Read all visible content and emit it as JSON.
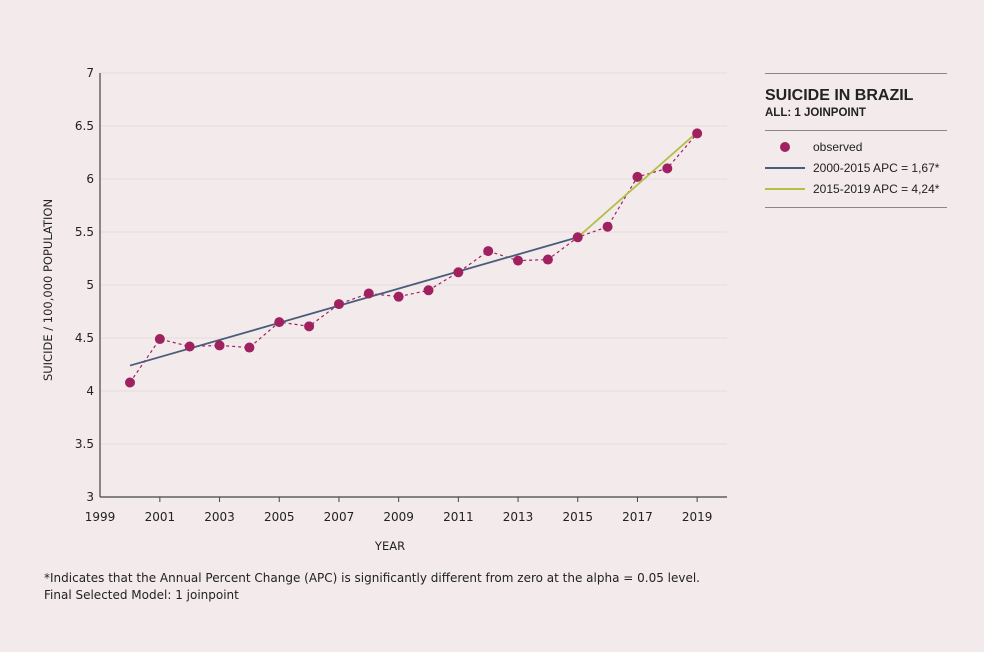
{
  "chart_data": {
    "type": "line",
    "xlabel": "YEAR",
    "ylabel": "SUICIDE / 100,000 POPULATION",
    "xlim": [
      1999,
      2020
    ],
    "ylim": [
      3,
      7
    ],
    "x_ticks": [
      "1999",
      "2001",
      "2003",
      "2005",
      "2007",
      "2009",
      "2011",
      "2013",
      "2015",
      "2017",
      "2019"
    ],
    "y_ticks": [
      "3",
      "3.5",
      "4",
      "4.5",
      "5",
      "5.5",
      "6",
      "6.5",
      "7"
    ],
    "grid": "horizontal",
    "x": [
      2000,
      2001,
      2002,
      2003,
      2004,
      2005,
      2006,
      2007,
      2008,
      2009,
      2010,
      2011,
      2012,
      2013,
      2014,
      2015,
      2016,
      2017,
      2018,
      2019
    ],
    "series": [
      {
        "name": "observed",
        "style": "markers-dashed",
        "color": "#a0215f",
        "values": [
          4.08,
          4.49,
          4.42,
          4.43,
          4.41,
          4.65,
          4.61,
          4.82,
          4.92,
          4.89,
          4.95,
          5.12,
          5.32,
          5.23,
          5.24,
          5.45,
          5.55,
          6.02,
          6.1,
          6.43
        ]
      },
      {
        "name": "2000-2015 APC = 1,67*",
        "style": "line",
        "color": "#4b5b7a",
        "x": [
          2000,
          2015
        ],
        "values": [
          4.24,
          5.45
        ]
      },
      {
        "name": "2015-2019 APC = 4,24*",
        "style": "line",
        "color": "#b3bf45",
        "x": [
          2015,
          2019
        ],
        "values": [
          5.45,
          6.44
        ]
      }
    ]
  },
  "legend": {
    "title": "SUICIDE IN BRAZIL",
    "subtitle": "ALL: 1 JOINPOINT",
    "items": [
      "observed",
      "2000-2015 APC = 1,67*",
      "2015-2019 APC = 4,24*"
    ]
  },
  "footnote": {
    "line1": "*Indicates that the Annual Percent Change (APC) is significantly different from zero at the alpha = 0.05 level.",
    "line2": "Final Selected Model: 1 joinpoint"
  }
}
